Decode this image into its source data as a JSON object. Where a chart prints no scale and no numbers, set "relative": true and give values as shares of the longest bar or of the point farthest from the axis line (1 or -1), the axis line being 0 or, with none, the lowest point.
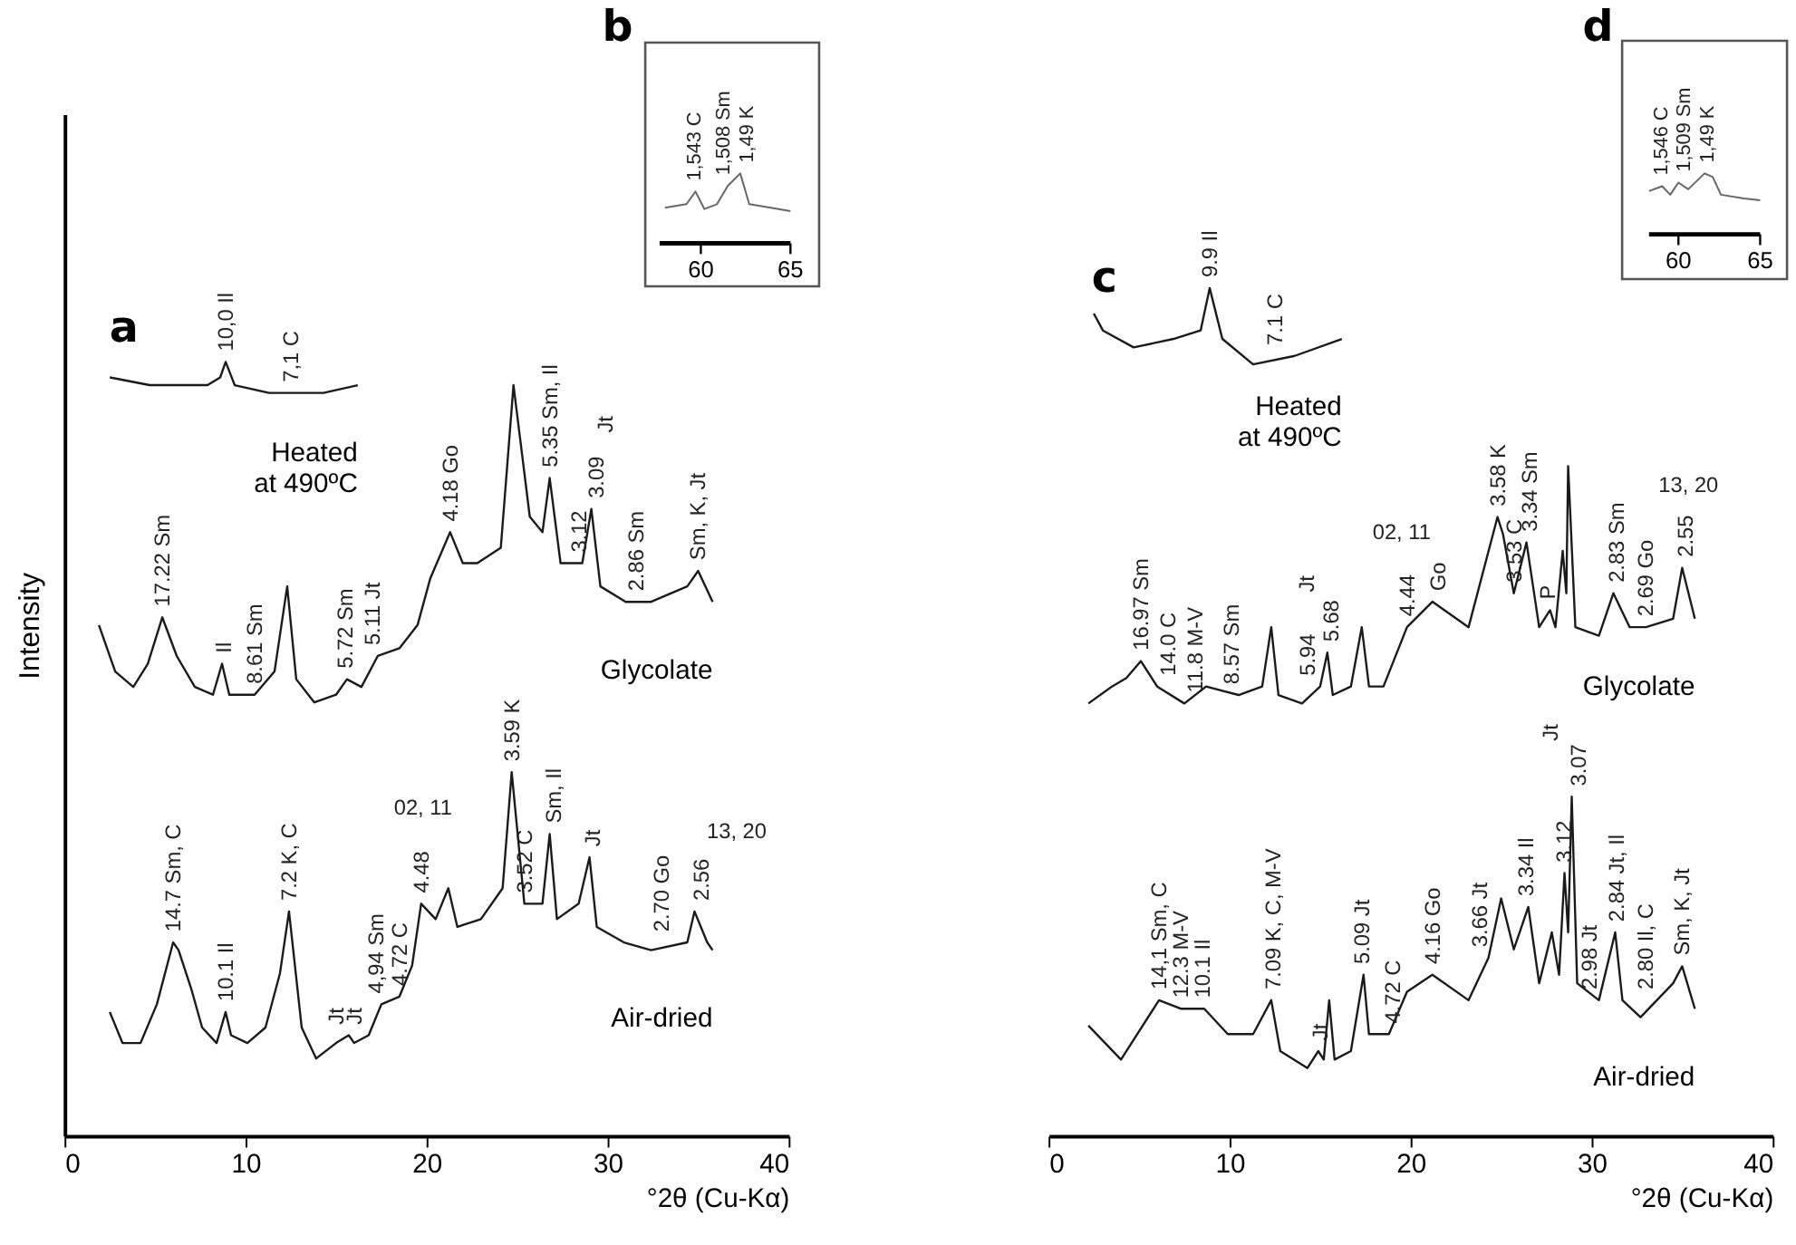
{
  "chart_data": [
    {
      "type": "line",
      "title": "a",
      "relative": true,
      "xlabel": "°2θ (Cu-Kα)",
      "ylabel": "Intensity",
      "xlim": [
        0,
        40
      ],
      "xticks": [
        0,
        10,
        20,
        30,
        40
      ],
      "tick_labels": "x",
      "series": [
        {
          "name": "Heated\nat 490ºC",
          "color": "#1a1a1a",
          "x": [
            2.5,
            4.7,
            7.9,
            8.6,
            8.9,
            9.4,
            11.3,
            12.6,
            14.3,
            16.2
          ],
          "values": [
            0.98,
            0.97,
            0.97,
            0.98,
            1.0,
            0.97,
            0.96,
            0.96,
            0.96,
            0.97
          ]
        },
        {
          "name": "Glycolate",
          "color": "#1a1a1a",
          "x": [
            1.9,
            2.8,
            3.8,
            4.6,
            5.4,
            6.2,
            7.2,
            8.2,
            8.7,
            9.1,
            10.5,
            11.6,
            12.3,
            12.8,
            13.8,
            15.0,
            15.6,
            16.4,
            17.3,
            18.5,
            19.5,
            20.2,
            21.3,
            22.0,
            22.8,
            24.1,
            24.8,
            25.7,
            26.4,
            26.8,
            27.4,
            28.6,
            29.1,
            29.6,
            31.0,
            32.4,
            34.4,
            35.0,
            35.8
          ],
          "values": [
            0.66,
            0.6,
            0.58,
            0.61,
            0.67,
            0.62,
            0.58,
            0.57,
            0.61,
            0.57,
            0.57,
            0.6,
            0.71,
            0.59,
            0.56,
            0.57,
            0.59,
            0.58,
            0.62,
            0.63,
            0.66,
            0.72,
            0.78,
            0.74,
            0.74,
            0.76,
            0.97,
            0.8,
            0.78,
            0.85,
            0.74,
            0.74,
            0.81,
            0.71,
            0.69,
            0.69,
            0.71,
            0.73,
            0.69
          ]
        },
        {
          "name": "Air-dried",
          "color": "#1a1a1a",
          "x": [
            2.5,
            3.2,
            4.2,
            5.1,
            6.0,
            6.3,
            7.0,
            7.6,
            8.4,
            8.9,
            9.2,
            10.1,
            11.1,
            11.9,
            12.4,
            13.1,
            13.9,
            15.0,
            15.7,
            16.0,
            16.8,
            17.5,
            18.5,
            19.2,
            19.7,
            20.5,
            21.2,
            21.7,
            23.0,
            24.2,
            24.7,
            25.4,
            26.4,
            26.8,
            27.2,
            28.4,
            29.0,
            29.4,
            30.9,
            32.4,
            34.4,
            34.8,
            35.5,
            35.8
          ],
          "values": [
            0.16,
            0.12,
            0.12,
            0.17,
            0.25,
            0.24,
            0.19,
            0.14,
            0.12,
            0.16,
            0.13,
            0.12,
            0.14,
            0.21,
            0.29,
            0.14,
            0.1,
            0.12,
            0.13,
            0.12,
            0.13,
            0.17,
            0.18,
            0.22,
            0.3,
            0.28,
            0.32,
            0.27,
            0.28,
            0.32,
            0.47,
            0.3,
            0.3,
            0.39,
            0.28,
            0.3,
            0.36,
            0.27,
            0.25,
            0.24,
            0.25,
            0.29,
            0.25,
            0.24
          ]
        }
      ],
      "annotations": [
        {
          "text": "10,0 Il",
          "x": 8.9,
          "y": 1.0
        },
        {
          "text": "7,1 C",
          "x": 12.5,
          "y": 0.96
        },
        {
          "text": "17.22 Sm",
          "x": 5.4,
          "y": 0.67
        },
        {
          "text": "Il",
          "x": 8.8,
          "y": 0.61
        },
        {
          "text": "8.61 Sm",
          "x": 10.5,
          "y": 0.57
        },
        {
          "text": "5.72 Sm",
          "x": 15.5,
          "y": 0.59
        },
        {
          "text": "5.11 Jt",
          "x": 17.0,
          "y": 0.62
        },
        {
          "text": "4.18 Go",
          "x": 21.3,
          "y": 0.78
        },
        {
          "text": "5.35 Sm, Il",
          "x": 26.8,
          "y": 0.85
        },
        {
          "text": "3.12",
          "x": 28.4,
          "y": 0.74
        },
        {
          "text": "3.09",
          "x": 29.4,
          "y": 0.81
        },
        "Jt",
        {
          "text": "2.86 Sm",
          "x": 31.6,
          "y": 0.69
        },
        {
          "text": "Sm, K, Jt",
          "x": 35.0,
          "y": 0.73
        },
        {
          "text": "14.7 Sm, C",
          "x": 6.0,
          "y": 0.25
        },
        {
          "text": "10.1 Il",
          "x": 8.9,
          "y": 0.16
        },
        {
          "text": "7.2 K, C",
          "x": 12.4,
          "y": 0.29
        },
        {
          "text": "Jt",
          "x": 15.0,
          "y": 0.13
        },
        {
          "text": "Jt",
          "x": 16.0,
          "y": 0.13
        },
        {
          "text": "4,94 Sm",
          "x": 17.2,
          "y": 0.17
        },
        {
          "text": "4.72 C",
          "x": 18.5,
          "y": 0.18
        },
        {
          "text": "4.48",
          "x": 19.7,
          "y": 0.3
        },
        "02, 11",
        {
          "text": "3.59 K",
          "x": 24.7,
          "y": 0.47
        },
        {
          "text": "3.52 C",
          "x": 25.4,
          "y": 0.3
        },
        {
          "text": "Sm, Il",
          "x": 27.0,
          "y": 0.39
        },
        {
          "text": "Jt",
          "x": 29.2,
          "y": 0.36
        },
        {
          "text": "2.70 Go",
          "x": 33.0,
          "y": 0.25
        },
        "13, 20",
        {
          "text": "2.56",
          "x": 35.2,
          "y": 0.29
        }
      ]
    },
    {
      "type": "line",
      "title": "b",
      "relative": true,
      "xlim": [
        57.7,
        65
      ],
      "xticks": [
        60,
        65
      ],
      "tick_labels": "x",
      "x": [
        58.0,
        59.2,
        59.7,
        60.2,
        60.9,
        61.5,
        62.2,
        62.7,
        63.9,
        65.0
      ],
      "series": [
        {
          "color": "#666666",
          "values": [
            0.51,
            0.56,
            0.74,
            0.49,
            0.56,
            0.82,
            1.0,
            0.56,
            0.51,
            0.46
          ]
        }
      ],
      "annotations": [
        {
          "text": "1,543 C",
          "x": 59.7,
          "y": 0.74
        },
        {
          "text": "1,508 Sm",
          "x": 61.3,
          "y": 0.82
        },
        {
          "text": "1,49 K",
          "x": 62.6,
          "y": 1.0
        }
      ]
    },
    {
      "type": "line",
      "title": "c",
      "relative": true,
      "xlabel": "°2θ (Cu-Kα)",
      "xlim": [
        0,
        40
      ],
      "xticks": [
        0,
        10,
        20,
        30,
        40
      ],
      "tick_labels": "x",
      "series": [
        {
          "name": "Heated\nat 490ºC",
          "color": "#1a1a1a",
          "x": [
            2.5,
            3.0,
            4.7,
            6.9,
            8.4,
            8.9,
            9.6,
            11.3,
            13.6,
            16.2
          ],
          "values": [
            0.97,
            0.95,
            0.93,
            0.94,
            0.95,
            1.0,
            0.94,
            0.91,
            0.92,
            0.94
          ]
        },
        {
          "name": "Glycolate",
          "color": "#1a1a1a",
          "x": [
            2.2,
            3.5,
            4.3,
            5.1,
            6.0,
            7.5,
            8.7,
            10.5,
            11.8,
            12.3,
            12.7,
            14.0,
            15.0,
            15.4,
            15.7,
            16.7,
            17.3,
            17.7,
            18.5,
            19.8,
            21.2,
            23.2,
            24.8,
            25.1,
            25.7,
            26.4,
            27.1,
            27.7,
            28.0,
            28.4,
            28.6,
            28.7,
            29.1,
            30.4,
            31.2,
            32.1,
            33.0,
            34.5,
            35.0,
            35.7
          ],
          "values": [
            0.51,
            0.53,
            0.54,
            0.56,
            0.53,
            0.51,
            0.53,
            0.52,
            0.53,
            0.6,
            0.52,
            0.51,
            0.53,
            0.57,
            0.52,
            0.53,
            0.6,
            0.53,
            0.53,
            0.6,
            0.63,
            0.6,
            0.73,
            0.71,
            0.64,
            0.7,
            0.6,
            0.62,
            0.6,
            0.69,
            0.64,
            0.79,
            0.6,
            0.59,
            0.64,
            0.6,
            0.6,
            0.61,
            0.67,
            0.61
          ]
        },
        {
          "name": "Air-dried",
          "color": "#1a1a1a",
          "x": [
            2.2,
            4.0,
            6.1,
            7.3,
            8.6,
            9.9,
            11.3,
            12.3,
            12.8,
            14.3,
            14.9,
            15.2,
            15.5,
            15.8,
            16.7,
            17.4,
            17.7,
            18.8,
            19.8,
            21.2,
            23.2,
            24.3,
            25.0,
            25.7,
            26.5,
            27.1,
            27.8,
            28.2,
            28.5,
            28.7,
            28.9,
            29.2,
            30.4,
            31.3,
            31.7,
            32.7,
            34.5,
            35.0,
            35.7
          ],
          "values": [
            0.13,
            0.09,
            0.16,
            0.15,
            0.15,
            0.12,
            0.12,
            0.16,
            0.1,
            0.08,
            0.1,
            0.09,
            0.16,
            0.09,
            0.1,
            0.19,
            0.12,
            0.12,
            0.17,
            0.19,
            0.16,
            0.21,
            0.28,
            0.22,
            0.27,
            0.18,
            0.24,
            0.19,
            0.31,
            0.24,
            0.4,
            0.18,
            0.16,
            0.24,
            0.16,
            0.14,
            0.18,
            0.2,
            0.15
          ]
        }
      ],
      "annotations": [
        {
          "text": "9.9 Il",
          "x": 8.9,
          "y": 1.0
        },
        {
          "text": "7.1 C",
          "x": 12.5,
          "y": 0.92
        },
        {
          "text": "16.97 Sm",
          "x": 5.1,
          "y": 0.56
        },
        {
          "text": "14.0 C",
          "x": 6.6,
          "y": 0.53
        },
        {
          "text": "11.8 M-V",
          "x": 8.1,
          "y": 0.51
        },
        {
          "text": "8.57 Sm",
          "x": 10.1,
          "y": 0.52
        },
        {
          "text": "5.94",
          "x": 14.3,
          "y": 0.53
        },
        "Jt",
        {
          "text": "5.68",
          "x": 15.6,
          "y": 0.57
        },
        {
          "text": "4.44",
          "x": 19.8,
          "y": 0.6
        },
        "02, 11",
        {
          "text": "Go",
          "x": 21.5,
          "y": 0.63
        },
        {
          "text": "3.58 K",
          "x": 24.8,
          "y": 0.73
        },
        {
          "text": "3.53 C",
          "x": 25.7,
          "y": 0.64
        },
        {
          "text": "3.34 Sm",
          "x": 26.6,
          "y": 0.7
        },
        {
          "text": "P",
          "x": 27.6,
          "y": 0.62
        },
        {
          "text": "2.83 Sm",
          "x": 31.4,
          "y": 0.64
        },
        {
          "text": "2.69 Go",
          "x": 33.0,
          "y": 0.6
        },
        "13, 20",
        {
          "text": "2.55",
          "x": 35.2,
          "y": 0.67
        },
        {
          "text": "14,1 Sm, C",
          "x": 6.1,
          "y": 0.16
        },
        {
          "text": "12.3 M-V",
          "x": 7.3,
          "y": 0.15
        },
        {
          "text": "10.1 Il",
          "x": 8.5,
          "y": 0.15
        },
        {
          "text": "7.09 K, C, M-V",
          "x": 12.4,
          "y": 0.16
        },
        {
          "text": "Jt",
          "x": 15.0,
          "y": 0.1
        },
        {
          "text": "5.09 Jt",
          "x": 17.3,
          "y": 0.19
        },
        {
          "text": "4.72 C",
          "x": 19.0,
          "y": 0.12
        },
        {
          "text": "4.16 Go",
          "x": 21.2,
          "y": 0.19
        },
        {
          "text": "3.66 Jt",
          "x": 23.8,
          "y": 0.21
        },
        {
          "text": "3.34 Il",
          "x": 26.4,
          "y": 0.27
        },
        {
          "text": "3.12",
          "x": 28.5,
          "y": 0.31
        },
        {
          "text": "3.07",
          "x": 29.3,
          "y": 0.4
        },
        "Jt",
        {
          "text": "2.98 Jt",
          "x": 29.9,
          "y": 0.16
        },
        {
          "text": "2.84 Jt, Il",
          "x": 31.4,
          "y": 0.24
        },
        {
          "text": "2.80 Il, C",
          "x": 33.0,
          "y": 0.16
        },
        {
          "text": "Sm, K, Jt",
          "x": 35.0,
          "y": 0.2
        }
      ]
    },
    {
      "type": "line",
      "title": "d",
      "relative": true,
      "xlim": [
        58.2,
        65
      ],
      "xticks": [
        60,
        65
      ],
      "tick_labels": "x",
      "x": [
        58.2,
        59.0,
        59.5,
        60.0,
        60.6,
        61.6,
        62.1,
        62.6,
        64.0,
        65.0
      ],
      "series": [
        {
          "color": "#666666",
          "values": [
            0.71,
            0.79,
            0.65,
            0.85,
            0.74,
            1.0,
            0.94,
            0.65,
            0.59,
            0.56
          ]
        }
      ],
      "annotations": [
        {
          "text": "1,546 C",
          "x": 59.0,
          "y": 0.79
        },
        {
          "text": "1,509 Sm",
          "x": 60.4,
          "y": 0.85
        },
        {
          "text": "1,49 K",
          "x": 61.8,
          "y": 1.0
        }
      ]
    }
  ]
}
